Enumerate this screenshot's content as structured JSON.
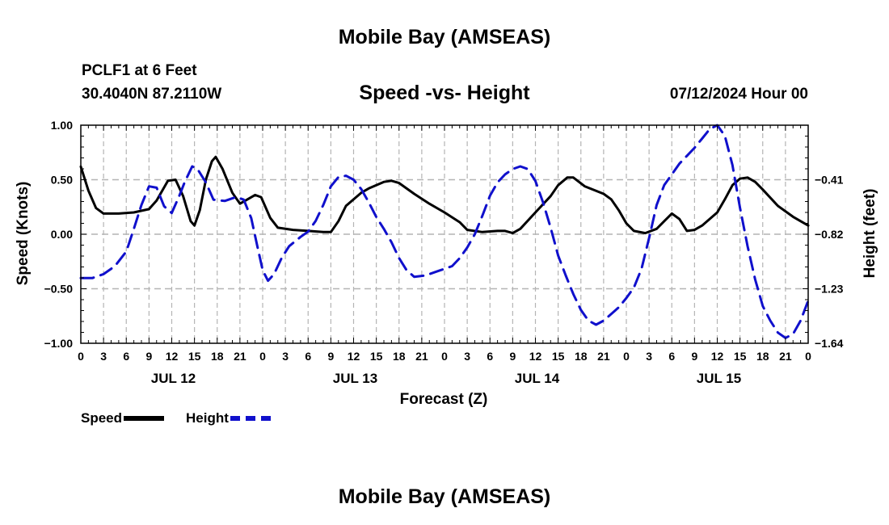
{
  "page": {
    "top_title": "Mobile Bay (AMSEAS)",
    "bottom_title": "Mobile Bay (AMSEAS)"
  },
  "chart_data": {
    "type": "line",
    "title": "Speed -vs- Height",
    "station": "PCLF1 at 6 Feet",
    "location": "30.4040N  87.2110W",
    "datetime": "07/12/2024 Hour 00",
    "xlabel": "Forecast (Z)",
    "ylabel_left": "Speed (Knots)",
    "ylabel_right": "Height (feet)",
    "x_range": [
      0,
      96
    ],
    "ylim_left": [
      -1.0,
      1.0
    ],
    "ylim_right": [
      -1.64,
      0.0
    ],
    "left_ticks": [
      {
        "v": 1.0,
        "label": "1.00"
      },
      {
        "v": 0.5,
        "label": "0.50"
      },
      {
        "v": 0.0,
        "label": "0.00"
      },
      {
        "v": -0.5,
        "label": "−0.50"
      },
      {
        "v": -1.0,
        "label": "−1.00"
      }
    ],
    "right_ticks": [
      {
        "v": -0.41,
        "label": "−0.41"
      },
      {
        "v": -0.82,
        "label": "−0.82"
      },
      {
        "v": -1.23,
        "label": "−1.23"
      },
      {
        "v": -1.64,
        "label": "−1.64"
      }
    ],
    "x_ticks": [
      {
        "h": 0,
        "label": "0"
      },
      {
        "h": 3,
        "label": "3"
      },
      {
        "h": 6,
        "label": "6"
      },
      {
        "h": 9,
        "label": "9"
      },
      {
        "h": 12,
        "label": "12"
      },
      {
        "h": 15,
        "label": "15"
      },
      {
        "h": 18,
        "label": "18"
      },
      {
        "h": 21,
        "label": "21"
      },
      {
        "h": 24,
        "label": "0"
      },
      {
        "h": 27,
        "label": "3"
      },
      {
        "h": 30,
        "label": "6"
      },
      {
        "h": 33,
        "label": "9"
      },
      {
        "h": 36,
        "label": "12"
      },
      {
        "h": 39,
        "label": "15"
      },
      {
        "h": 42,
        "label": "18"
      },
      {
        "h": 45,
        "label": "21"
      },
      {
        "h": 48,
        "label": "0"
      },
      {
        "h": 51,
        "label": "3"
      },
      {
        "h": 54,
        "label": "6"
      },
      {
        "h": 57,
        "label": "9"
      },
      {
        "h": 60,
        "label": "12"
      },
      {
        "h": 63,
        "label": "15"
      },
      {
        "h": 66,
        "label": "18"
      },
      {
        "h": 69,
        "label": "21"
      },
      {
        "h": 72,
        "label": "0"
      },
      {
        "h": 75,
        "label": "3"
      },
      {
        "h": 78,
        "label": "6"
      },
      {
        "h": 81,
        "label": "9"
      },
      {
        "h": 84,
        "label": "12"
      },
      {
        "h": 87,
        "label": "15"
      },
      {
        "h": 90,
        "label": "18"
      },
      {
        "h": 93,
        "label": "21"
      },
      {
        "h": 96,
        "label": "0"
      }
    ],
    "day_labels": [
      {
        "h": 12,
        "label": "JUL 12"
      },
      {
        "h": 36,
        "label": "JUL 13"
      },
      {
        "h": 60,
        "label": "JUL 14"
      },
      {
        "h": 84,
        "label": "JUL 15"
      }
    ],
    "series": [
      {
        "name": "Speed",
        "axis": "left",
        "color": "#000000",
        "dash": "solid",
        "points": [
          [
            0,
            0.62
          ],
          [
            1,
            0.4
          ],
          [
            2,
            0.24
          ],
          [
            3,
            0.19
          ],
          [
            5,
            0.19
          ],
          [
            7,
            0.2
          ],
          [
            9,
            0.23
          ],
          [
            10,
            0.31
          ],
          [
            11.5,
            0.49
          ],
          [
            12.5,
            0.5
          ],
          [
            13.5,
            0.35
          ],
          [
            14.5,
            0.12
          ],
          [
            15,
            0.08
          ],
          [
            15.7,
            0.22
          ],
          [
            16.5,
            0.5
          ],
          [
            17.3,
            0.67
          ],
          [
            17.8,
            0.71
          ],
          [
            18.7,
            0.6
          ],
          [
            20,
            0.38
          ],
          [
            21,
            0.28
          ],
          [
            22,
            0.32
          ],
          [
            23,
            0.36
          ],
          [
            23.8,
            0.34
          ],
          [
            25,
            0.15
          ],
          [
            26,
            0.06
          ],
          [
            28,
            0.04
          ],
          [
            30,
            0.03
          ],
          [
            32,
            0.02
          ],
          [
            33,
            0.02
          ],
          [
            34,
            0.12
          ],
          [
            35,
            0.26
          ],
          [
            37,
            0.38
          ],
          [
            38,
            0.42
          ],
          [
            40,
            0.48
          ],
          [
            41,
            0.49
          ],
          [
            42,
            0.47
          ],
          [
            44,
            0.37
          ],
          [
            46,
            0.28
          ],
          [
            48,
            0.2
          ],
          [
            50,
            0.11
          ],
          [
            51,
            0.04
          ],
          [
            53,
            0.02
          ],
          [
            55,
            0.03
          ],
          [
            56,
            0.03
          ],
          [
            57,
            0.01
          ],
          [
            58,
            0.05
          ],
          [
            60,
            0.2
          ],
          [
            62,
            0.35
          ],
          [
            63,
            0.45
          ],
          [
            64.2,
            0.52
          ],
          [
            65,
            0.52
          ],
          [
            66.5,
            0.44
          ],
          [
            69,
            0.37
          ],
          [
            70,
            0.32
          ],
          [
            71,
            0.22
          ],
          [
            72,
            0.1
          ],
          [
            73,
            0.03
          ],
          [
            74.5,
            0.01
          ],
          [
            76,
            0.05
          ],
          [
            77,
            0.12
          ],
          [
            78,
            0.19
          ],
          [
            79,
            0.14
          ],
          [
            80,
            0.03
          ],
          [
            81,
            0.04
          ],
          [
            82,
            0.08
          ],
          [
            84,
            0.2
          ],
          [
            85,
            0.32
          ],
          [
            86,
            0.45
          ],
          [
            87,
            0.51
          ],
          [
            88,
            0.52
          ],
          [
            89,
            0.48
          ],
          [
            90,
            0.41
          ],
          [
            92,
            0.26
          ],
          [
            94,
            0.16
          ],
          [
            95,
            0.12
          ],
          [
            96,
            0.08
          ]
        ]
      },
      {
        "name": "Height",
        "axis": "right",
        "color": "#1010cc",
        "dash": "dashed",
        "points": [
          [
            0,
            -1.15
          ],
          [
            1.5,
            -1.15
          ],
          [
            3,
            -1.12
          ],
          [
            4.5,
            -1.06
          ],
          [
            6,
            -0.95
          ],
          [
            7,
            -0.78
          ],
          [
            8,
            -0.6
          ],
          [
            9,
            -0.46
          ],
          [
            10,
            -0.47
          ],
          [
            11,
            -0.61
          ],
          [
            12,
            -0.66
          ],
          [
            13,
            -0.53
          ],
          [
            13.7,
            -0.43
          ],
          [
            14.7,
            -0.31
          ],
          [
            15.4,
            -0.33
          ],
          [
            16.5,
            -0.43
          ],
          [
            17.5,
            -0.56
          ],
          [
            19,
            -0.57
          ],
          [
            20.5,
            -0.54
          ],
          [
            21.5,
            -0.56
          ],
          [
            22.5,
            -0.7
          ],
          [
            23.3,
            -0.91
          ],
          [
            24,
            -1.09
          ],
          [
            24.7,
            -1.17
          ],
          [
            25.5,
            -1.12
          ],
          [
            26.5,
            -1.0
          ],
          [
            27.5,
            -0.91
          ],
          [
            29,
            -0.84
          ],
          [
            30,
            -0.8
          ],
          [
            31,
            -0.72
          ],
          [
            32,
            -0.6
          ],
          [
            33,
            -0.46
          ],
          [
            34,
            -0.39
          ],
          [
            35,
            -0.38
          ],
          [
            36,
            -0.41
          ],
          [
            37,
            -0.48
          ],
          [
            38,
            -0.58
          ],
          [
            39,
            -0.69
          ],
          [
            40,
            -0.78
          ],
          [
            41,
            -0.88
          ],
          [
            42,
            -1.0
          ],
          [
            43,
            -1.09
          ],
          [
            44,
            -1.14
          ],
          [
            45.5,
            -1.13
          ],
          [
            47,
            -1.1
          ],
          [
            49,
            -1.06
          ],
          [
            50,
            -1.0
          ],
          [
            51,
            -0.92
          ],
          [
            52,
            -0.82
          ],
          [
            53,
            -0.68
          ],
          [
            54,
            -0.53
          ],
          [
            55,
            -0.43
          ],
          [
            56,
            -0.37
          ],
          [
            57,
            -0.33
          ],
          [
            58,
            -0.31
          ],
          [
            59,
            -0.33
          ],
          [
            60,
            -0.42
          ],
          [
            61,
            -0.58
          ],
          [
            62,
            -0.77
          ],
          [
            63,
            -0.98
          ],
          [
            64,
            -1.13
          ],
          [
            65,
            -1.27
          ],
          [
            66,
            -1.39
          ],
          [
            67,
            -1.47
          ],
          [
            68,
            -1.5
          ],
          [
            69,
            -1.47
          ],
          [
            70,
            -1.42
          ],
          [
            71,
            -1.37
          ],
          [
            72,
            -1.3
          ],
          [
            73,
            -1.22
          ],
          [
            74,
            -1.08
          ],
          [
            75,
            -0.85
          ],
          [
            76,
            -0.6
          ],
          [
            77,
            -0.45
          ],
          [
            78,
            -0.37
          ],
          [
            79,
            -0.29
          ],
          [
            80,
            -0.23
          ],
          [
            81,
            -0.17
          ],
          [
            82,
            -0.1
          ],
          [
            83,
            -0.03
          ],
          [
            84,
            0.0
          ],
          [
            85,
            -0.08
          ],
          [
            86,
            -0.3
          ],
          [
            87,
            -0.62
          ],
          [
            88,
            -0.91
          ],
          [
            89,
            -1.16
          ],
          [
            90,
            -1.36
          ],
          [
            91,
            -1.47
          ],
          [
            92,
            -1.56
          ],
          [
            93,
            -1.6
          ],
          [
            94,
            -1.57
          ],
          [
            95,
            -1.47
          ],
          [
            96,
            -1.32
          ]
        ]
      }
    ]
  }
}
